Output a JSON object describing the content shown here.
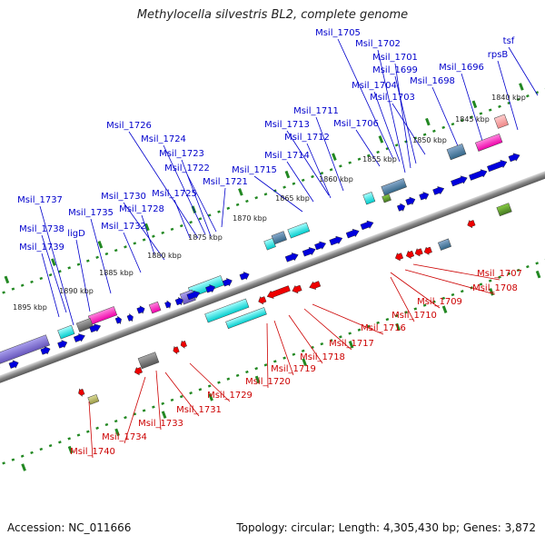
{
  "title": "Methylocella silvestris BL2, complete genome",
  "footer": {
    "accession": "Accession: NC_011666",
    "summary": "Topology: circular; Length: 4,305,430 bp; Genes: 3,872"
  },
  "colors": {
    "forward_gene": "#0000dd",
    "reverse_gene": "#ee0000",
    "forward_label": "#0000cc",
    "reverse_label": "#cc0000",
    "backbone": "#888888",
    "tick_dots": "#228822"
  },
  "kbp_ticks": [
    "1840 kbp",
    "1845 kbp",
    "1850 kbp",
    "1855 kbp",
    "1860 kbp",
    "1865 kbp",
    "1870 kbp",
    "1875 kbp",
    "1880 kbp",
    "1885 kbp",
    "1890 kbp",
    "1895 kbp"
  ],
  "forward_labels": [
    "Msil_1705",
    "Msil_1702",
    "Msil_1701",
    "Msil_1699",
    "Msil_1704",
    "Msil_1703",
    "Msil_1698",
    "Msil_1696",
    "rpsB",
    "tsf",
    "Msil_1711",
    "Msil_1713",
    "Msil_1712",
    "Msil_1706",
    "Msil_1714",
    "Msil_1715",
    "Msil_1726",
    "Msil_1724",
    "Msil_1723",
    "Msil_1722",
    "Msil_1721",
    "Msil_1725",
    "Msil_1730",
    "Msil_1728",
    "Msil_1737",
    "Msil_1735",
    "Msil_1732",
    "Msil_1738",
    "ligD",
    "Msil_1739"
  ],
  "reverse_labels": [
    "Msil_1707",
    "Msil_1708",
    "Msil_1709",
    "Msil_1710",
    "Msil_1716",
    "Msil_1717",
    "Msil_1718",
    "Msil_1719",
    "Msil_1720",
    "Msil_1729",
    "Msil_1731",
    "Msil_1733",
    "Msil_1734",
    "Msil_1740"
  ]
}
